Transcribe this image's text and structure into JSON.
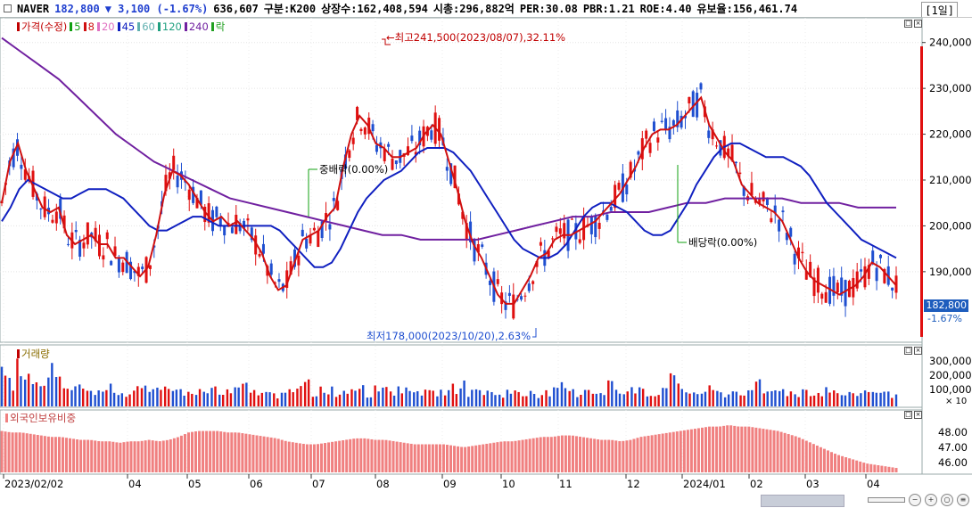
{
  "header": {
    "stock_name": "NAVER",
    "price": "182,800",
    "change": "▼ 3,100 (-1.67%)",
    "volume": "636,607",
    "category": "구분:K200",
    "listed_shares": "상장수:162,408,594",
    "market_cap": "시총:296,882억",
    "per": "PER:30.08",
    "pbr": "PBR:1.21",
    "roe": "ROE:4.40",
    "float": "유보율:156,461.74",
    "period": "[1일]"
  },
  "colors": {
    "up": "#e01010",
    "down": "#1f4fd0",
    "ma5": "#10a010",
    "ma20": "#e070c0",
    "ma60": "#60b0b0",
    "ma120": "#20a080",
    "ma240": "#7020a0",
    "ma45": "#1020c0",
    "ma8": "#d01010",
    "foreign": "#f08080"
  },
  "price_panel": {
    "legend": [
      {
        "label": "가격(수정)",
        "color": "#c00000"
      },
      {
        "label": "5",
        "color": "#10a010"
      },
      {
        "label": "8",
        "color": "#d01010"
      },
      {
        "label": "20",
        "color": "#e070c0"
      },
      {
        "label": "45",
        "color": "#1020c0"
      },
      {
        "label": "60",
        "color": "#60b0b0"
      },
      {
        "label": "120",
        "color": "#20a080"
      },
      {
        "label": "240",
        "color": "#7020a0"
      },
      {
        "label": "락",
        "color": "#20a020"
      }
    ],
    "current_price_label": "182,800",
    "current_change_label": "-1.67%",
    "annotations": {
      "high": "최고241,500(2023/08/07),32.11%",
      "low": "최저178,000(2023/10/20),2.63%",
      "div1": "중배락(0.00%)",
      "div2": "배당락(0.00%)"
    }
  },
  "volume_panel": {
    "legend": "거래량",
    "ticks": [
      "300,000",
      "200,000",
      "100,000",
      "× 10"
    ]
  },
  "foreign_panel": {
    "legend": "외국인보유비중",
    "ticks": [
      "48.00",
      "47.00",
      "46.00"
    ]
  },
  "x_axis": {
    "labels": [
      "2023/02/02",
      "04",
      "05",
      "06",
      "07",
      "08",
      "09",
      "10",
      "11",
      "12",
      "2024/01",
      "02",
      "03",
      "04"
    ]
  },
  "chart_data": {
    "type": "line",
    "title": "NAVER",
    "x_range": [
      "2023/02/02",
      "2024/04"
    ],
    "ylim": [
      175000,
      245000
    ],
    "y_ticks": [
      190000,
      200000,
      210000,
      220000,
      230000,
      240000
    ],
    "y_tick_labels": [
      "190,000",
      "200,000",
      "210,000",
      "220,000",
      "230,000",
      "240,000"
    ],
    "series": [
      {
        "name": "8",
        "values": [
          205000,
          214000,
          218000,
          212000,
          208000,
          204000,
          203000,
          204000,
          198000,
          196000,
          197000,
          198000,
          196000,
          196000,
          193000,
          193000,
          191000,
          189000,
          191000,
          198000,
          207000,
          212000,
          211000,
          209000,
          206000,
          203000,
          201000,
          202000,
          200000,
          201000,
          199000,
          197000,
          194000,
          189000,
          186000,
          187000,
          192000,
          197000,
          198000,
          199000,
          202000,
          204000,
          213000,
          220000,
          224000,
          222000,
          218000,
          217000,
          215000,
          215000,
          216000,
          217000,
          220000,
          222000,
          220000,
          214000,
          208000,
          201000,
          196000,
          193000,
          189000,
          185000,
          183000,
          183000,
          186000,
          189000,
          193000,
          194000,
          197000,
          198000,
          198000,
          199000,
          200000,
          201000,
          203000,
          205000,
          207000,
          210000,
          213000,
          217000,
          220000,
          221000,
          221000,
          222000,
          224000,
          226000,
          228000,
          222000,
          219000,
          216000,
          214000,
          209000,
          207000,
          205000,
          204000,
          203000,
          201000,
          197000,
          193000,
          190000,
          188000,
          187000,
          186000,
          185000,
          186000,
          187000,
          189000,
          192000,
          191000,
          189000,
          187000
        ]
      },
      {
        "name": "45",
        "values": [
          201000,
          204000,
          208000,
          210000,
          209000,
          208000,
          207000,
          206000,
          206000,
          207000,
          208000,
          208000,
          208000,
          207000,
          206000,
          204000,
          202000,
          200000,
          199000,
          199000,
          200000,
          201000,
          202000,
          202000,
          201000,
          200000,
          200000,
          200000,
          200000,
          200000,
          200000,
          200000,
          199000,
          197000,
          195000,
          193000,
          191000,
          191000,
          192000,
          195000,
          199000,
          203000,
          206000,
          208000,
          210000,
          211000,
          212000,
          214000,
          216000,
          217000,
          217000,
          217000,
          216000,
          214000,
          212000,
          209000,
          206000,
          203000,
          200000,
          197000,
          195000,
          194000,
          193000,
          193000,
          194000,
          196000,
          199000,
          202000,
          204000,
          205000,
          205000,
          204000,
          203000,
          201000,
          199000,
          198000,
          198000,
          199000,
          202000,
          205000,
          209000,
          212000,
          215000,
          217000,
          218000,
          218000,
          217000,
          216000,
          215000,
          215000,
          215000,
          214000,
          213000,
          211000,
          208000,
          205000,
          203000,
          201000,
          199000,
          197000,
          196000,
          195000,
          194000,
          193000
        ]
      },
      {
        "name": "240",
        "values": [
          241000,
          238000,
          235000,
          232000,
          228000,
          224000,
          220000,
          217000,
          214000,
          212000,
          210000,
          208000,
          206000,
          205000,
          204000,
          203000,
          202000,
          201000,
          200000,
          199000,
          198000,
          198000,
          197000,
          197000,
          197000,
          197000,
          198000,
          199000,
          200000,
          201000,
          202000,
          202000,
          203000,
          203000,
          203000,
          204000,
          205000,
          205000,
          206000,
          206000,
          206000,
          206000,
          205000,
          205000,
          205000,
          204000,
          204000,
          204000
        ]
      }
    ],
    "annotations": [
      {
        "text": "최고241,500(2023/08/07),32.11%",
        "date": "2023/08/07",
        "value": 241500
      },
      {
        "text": "최저178,000(2023/10/20),2.63%",
        "date": "2023/10/20",
        "value": 178000
      },
      {
        "text": "중배락(0.00%)"
      },
      {
        "text": "배당락(0.00%)"
      }
    ],
    "volume": {
      "ylabel": "거래량",
      "ylim": [
        0,
        350000
      ],
      "values": [
        210000,
        150000,
        260000,
        180000,
        140000,
        120000,
        250000,
        160000,
        130000,
        110000,
        150000,
        100000,
        90000,
        140000,
        120000,
        100000,
        80000,
        130000,
        110000,
        90000,
        100000,
        120000,
        140000,
        95000,
        85000,
        100000,
        90000,
        120000,
        80000,
        90000,
        110000,
        130000,
        95000,
        100000,
        85000,
        75000,
        120000,
        90000,
        110000,
        160000,
        80000,
        120000,
        110000,
        90000,
        100000,
        130000,
        150000,
        85000,
        110000,
        150000,
        95000,
        120000,
        100000,
        130000,
        90000,
        85000,
        95000,
        100000,
        120000,
        150000,
        90000,
        110000,
        95000,
        85000,
        80000,
        100000,
        90000,
        75000,
        110000,
        80000,
        90000,
        100000,
        130000,
        95000,
        85000,
        130000,
        90000,
        100000,
        160000,
        95000,
        85000,
        110000,
        130000,
        90000,
        75000,
        160000,
        180000,
        120000,
        100000,
        90000,
        95000,
        110000,
        90000,
        80000,
        100000,
        95000,
        85000,
        150000,
        95000,
        100000,
        130000,
        90000,
        80000,
        110000,
        95000,
        85000,
        120000,
        90000,
        80000,
        75000,
        90000,
        100000,
        110000,
        85000,
        80000,
        95000
      ]
    },
    "foreign_holding": {
      "ylabel": "외국인보유비중",
      "ylim": [
        45.5,
        49.0
      ],
      "y_ticks": [
        46.0,
        47.0,
        48.0
      ],
      "values": [
        48.3,
        48.2,
        48.2,
        48.1,
        48.0,
        47.9,
        47.9,
        47.8,
        47.7,
        47.7,
        47.6,
        47.6,
        47.5,
        47.6,
        47.6,
        47.7,
        47.6,
        47.7,
        47.9,
        48.2,
        48.3,
        48.3,
        48.3,
        48.2,
        48.2,
        48.1,
        48.0,
        47.9,
        47.8,
        47.6,
        47.5,
        47.4,
        47.4,
        47.5,
        47.6,
        47.7,
        47.8,
        47.8,
        47.7,
        47.7,
        47.6,
        47.5,
        47.4,
        47.4,
        47.4,
        47.4,
        47.3,
        47.2,
        47.3,
        47.4,
        47.5,
        47.6,
        47.6,
        47.7,
        47.8,
        47.9,
        47.9,
        48.0,
        48.0,
        47.9,
        47.8,
        47.7,
        47.7,
        47.6,
        47.7,
        47.9,
        48.0,
        48.1,
        48.2,
        48.3,
        48.4,
        48.5,
        48.6,
        48.6,
        48.7,
        48.6,
        48.6,
        48.5,
        48.4,
        48.3,
        48.1,
        47.9,
        47.6,
        47.3,
        47.0,
        46.7,
        46.5,
        46.3,
        46.1,
        46.0,
        45.9,
        45.8
      ]
    }
  }
}
